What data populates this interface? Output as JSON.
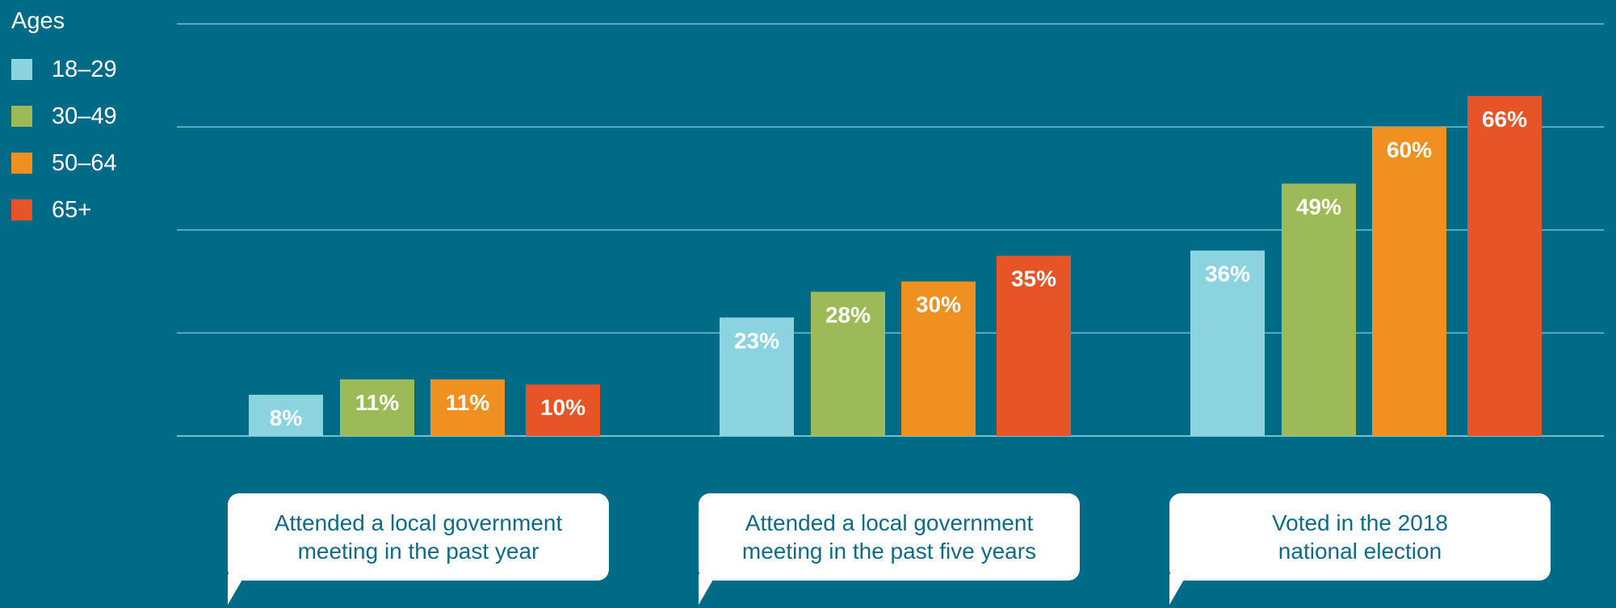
{
  "chart_data": {
    "type": "bar",
    "legend_title": "Ages",
    "legend_position": "top-left",
    "categories": [
      "Attended a local government\nmeeting in the past year",
      "Attended a local government\nmeeting in the past five years",
      "Voted in the 2018\nnational election"
    ],
    "series": [
      {
        "name": "18–29",
        "color": "#8bd3df",
        "values": [
          8,
          23,
          36
        ],
        "labels": [
          "8%",
          "23%",
          "36%"
        ]
      },
      {
        "name": "30–49",
        "color": "#9dba59",
        "values": [
          11,
          28,
          49
        ],
        "labels": [
          "11%",
          "28%",
          "49%"
        ]
      },
      {
        "name": "50–64",
        "color": "#ef9021",
        "values": [
          11,
          30,
          60
        ],
        "labels": [
          "11%",
          "30%",
          "60%"
        ]
      },
      {
        "name": "65+",
        "color": "#e65427",
        "values": [
          10,
          35,
          66
        ],
        "labels": [
          "10%",
          "35%",
          "66%"
        ]
      }
    ],
    "ylim": [
      0,
      80
    ],
    "gridlines": [
      0,
      20,
      40,
      60,
      80
    ],
    "grid": true,
    "unit": "%"
  },
  "colors": {
    "background": "#006b87",
    "gridline": "#6fc3cf",
    "bubble_text": "#0f6a84",
    "bar_label": "#ffffff"
  }
}
